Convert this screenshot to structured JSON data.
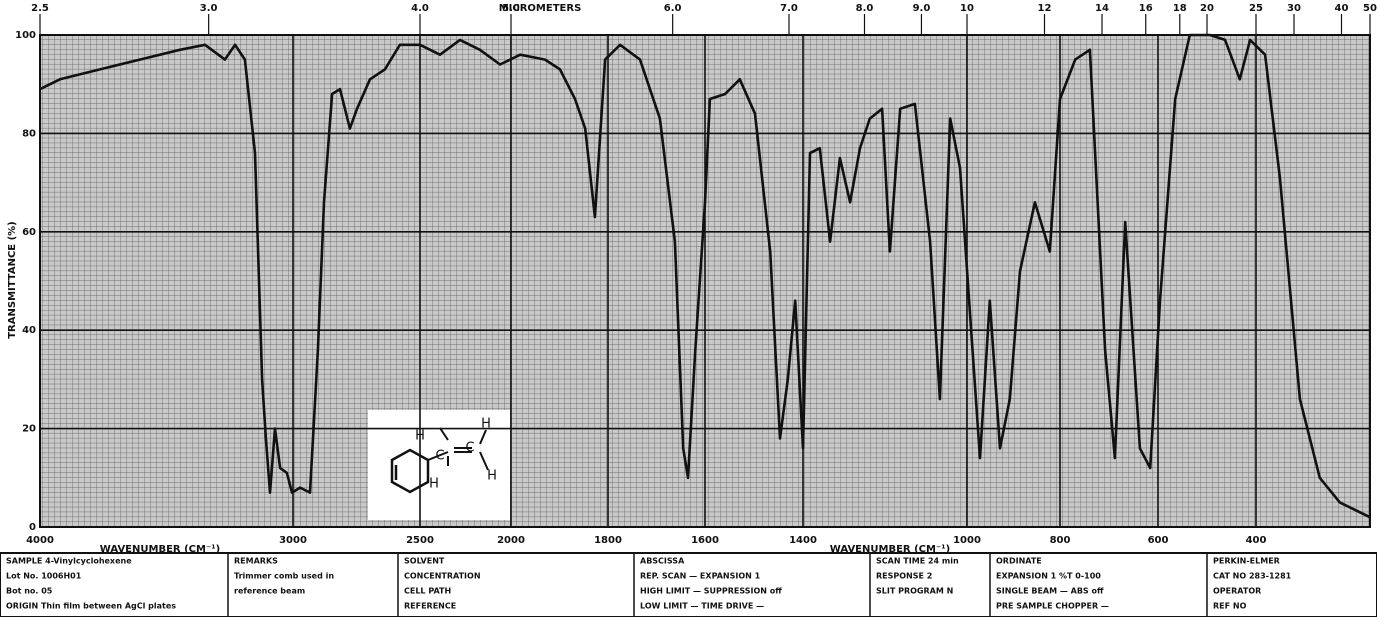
{
  "chart_data": {
    "type": "line",
    "x_label": "WAVENUMBER (CM⁻¹)",
    "y_label": "TRANSMITTANCE (%)",
    "x2_label": "MICROMETERS",
    "x": [
      4000,
      3921,
      3763,
      3605,
      3447,
      3348,
      3269,
      3229,
      3190,
      3150,
      3122,
      3107,
      3091,
      3071,
      3051,
      3024,
      3004,
      2972,
      2933,
      2902,
      2878,
      2846,
      2815,
      2776,
      2748,
      2697,
      2638,
      2579,
      2500,
      2390,
      2280,
      2171,
      2060,
      1981,
      1930,
      1899,
      1868,
      1847,
      1827,
      1806,
      1775,
      1734,
      1693,
      1662,
      1645,
      1635,
      1620,
      1600,
      1590,
      1559,
      1529,
      1498,
      1467,
      1447,
      1431,
      1416,
      1400,
      1383,
      1359,
      1334,
      1310,
      1285,
      1261,
      1237,
      1207,
      1188,
      1163,
      1127,
      1090,
      1066,
      1041,
      1017,
      994,
      972,
      951,
      929,
      908,
      886,
      854,
      822,
      800,
      769,
      739,
      708,
      688,
      667,
      637,
      616,
      596,
      565,
      535,
      494,
      463,
      433,
      412,
      384,
      358,
      323,
      288,
      253,
      218,
      200
    ],
    "values": [
      89,
      91,
      93,
      95,
      97,
      98,
      95,
      98,
      95,
      76,
      30,
      18,
      7,
      20,
      12,
      11,
      7,
      8,
      7,
      36,
      66,
      88,
      89,
      81,
      85,
      91,
      93,
      98,
      98,
      96,
      99,
      97,
      94,
      96,
      95,
      93,
      87,
      81,
      63,
      95,
      98,
      95,
      83,
      58,
      16,
      10,
      36,
      66,
      87,
      88,
      91,
      84,
      56,
      18,
      30,
      46,
      16,
      76,
      77,
      58,
      75,
      66,
      77,
      83,
      85,
      56,
      85,
      86,
      58,
      26,
      83,
      73,
      44,
      14,
      46,
      16,
      26,
      52,
      66,
      56,
      87,
      95,
      97,
      36,
      14,
      62,
      16,
      12,
      46,
      87,
      100,
      100,
      99,
      91,
      99,
      96,
      71,
      26,
      10,
      5,
      3,
      2
    ],
    "color": "#111111",
    "xlim": [
      4000,
      200
    ],
    "ylim": [
      0,
      100
    ],
    "xticks": [
      4000,
      3000,
      2500,
      2000,
      1800,
      1600,
      1400,
      1000,
      800,
      600,
      400
    ],
    "yticks": [
      0,
      20,
      40,
      60,
      80,
      100
    ],
    "x2ticks": [
      2.5,
      {
        "value": 3,
        "label": "3.0"
      },
      {
        "value": 4,
        "label": "4.0"
      },
      {
        "value": 5,
        "label": "5.0"
      },
      {
        "value": 6,
        "label": "6.0"
      },
      {
        "value": 7,
        "label": "7.0"
      },
      {
        "value": 8,
        "label": "8.0"
      },
      {
        "value": 9,
        "label": "9.0"
      },
      10,
      12,
      14,
      16,
      18,
      20,
      25,
      30,
      40,
      50
    ],
    "grid": true,
    "structure_labels": [
      "H",
      "C",
      "C",
      "H",
      "H",
      "H"
    ]
  },
  "form": {
    "columns": [
      [
        "SAMPLE 4-Vinylcyclohexene",
        "Lot No. 1006H01",
        "Bot no. 05",
        "ORIGIN  Thin film between AgCl plates"
      ],
      [
        "REMARKS",
        "Trimmer comb used in",
        "reference beam"
      ],
      [
        "SOLVENT",
        "CONCENTRATION",
        "CELL PATH",
        "REFERENCE"
      ],
      [
        "ABSCISSA",
        "REP. SCAN  —  EXPANSION  1",
        "HIGH LIMIT  —  SUPPRESSION  off",
        "LOW LIMIT  —  TIME DRIVE  —"
      ],
      [
        "SCAN TIME  24 min",
        "RESPONSE  2",
        "SLIT PROGRAM  N"
      ],
      [
        "ORDINATE",
        "EXPANSION  1   %T 0-100",
        "SINGLE BEAM  —   ABS  off",
        "PRE SAMPLE CHOPPER  —"
      ],
      [
        "PERKIN-ELMER",
        "CAT NO 283-1281",
        "OPERATOR",
        "REF NO"
      ]
    ]
  }
}
